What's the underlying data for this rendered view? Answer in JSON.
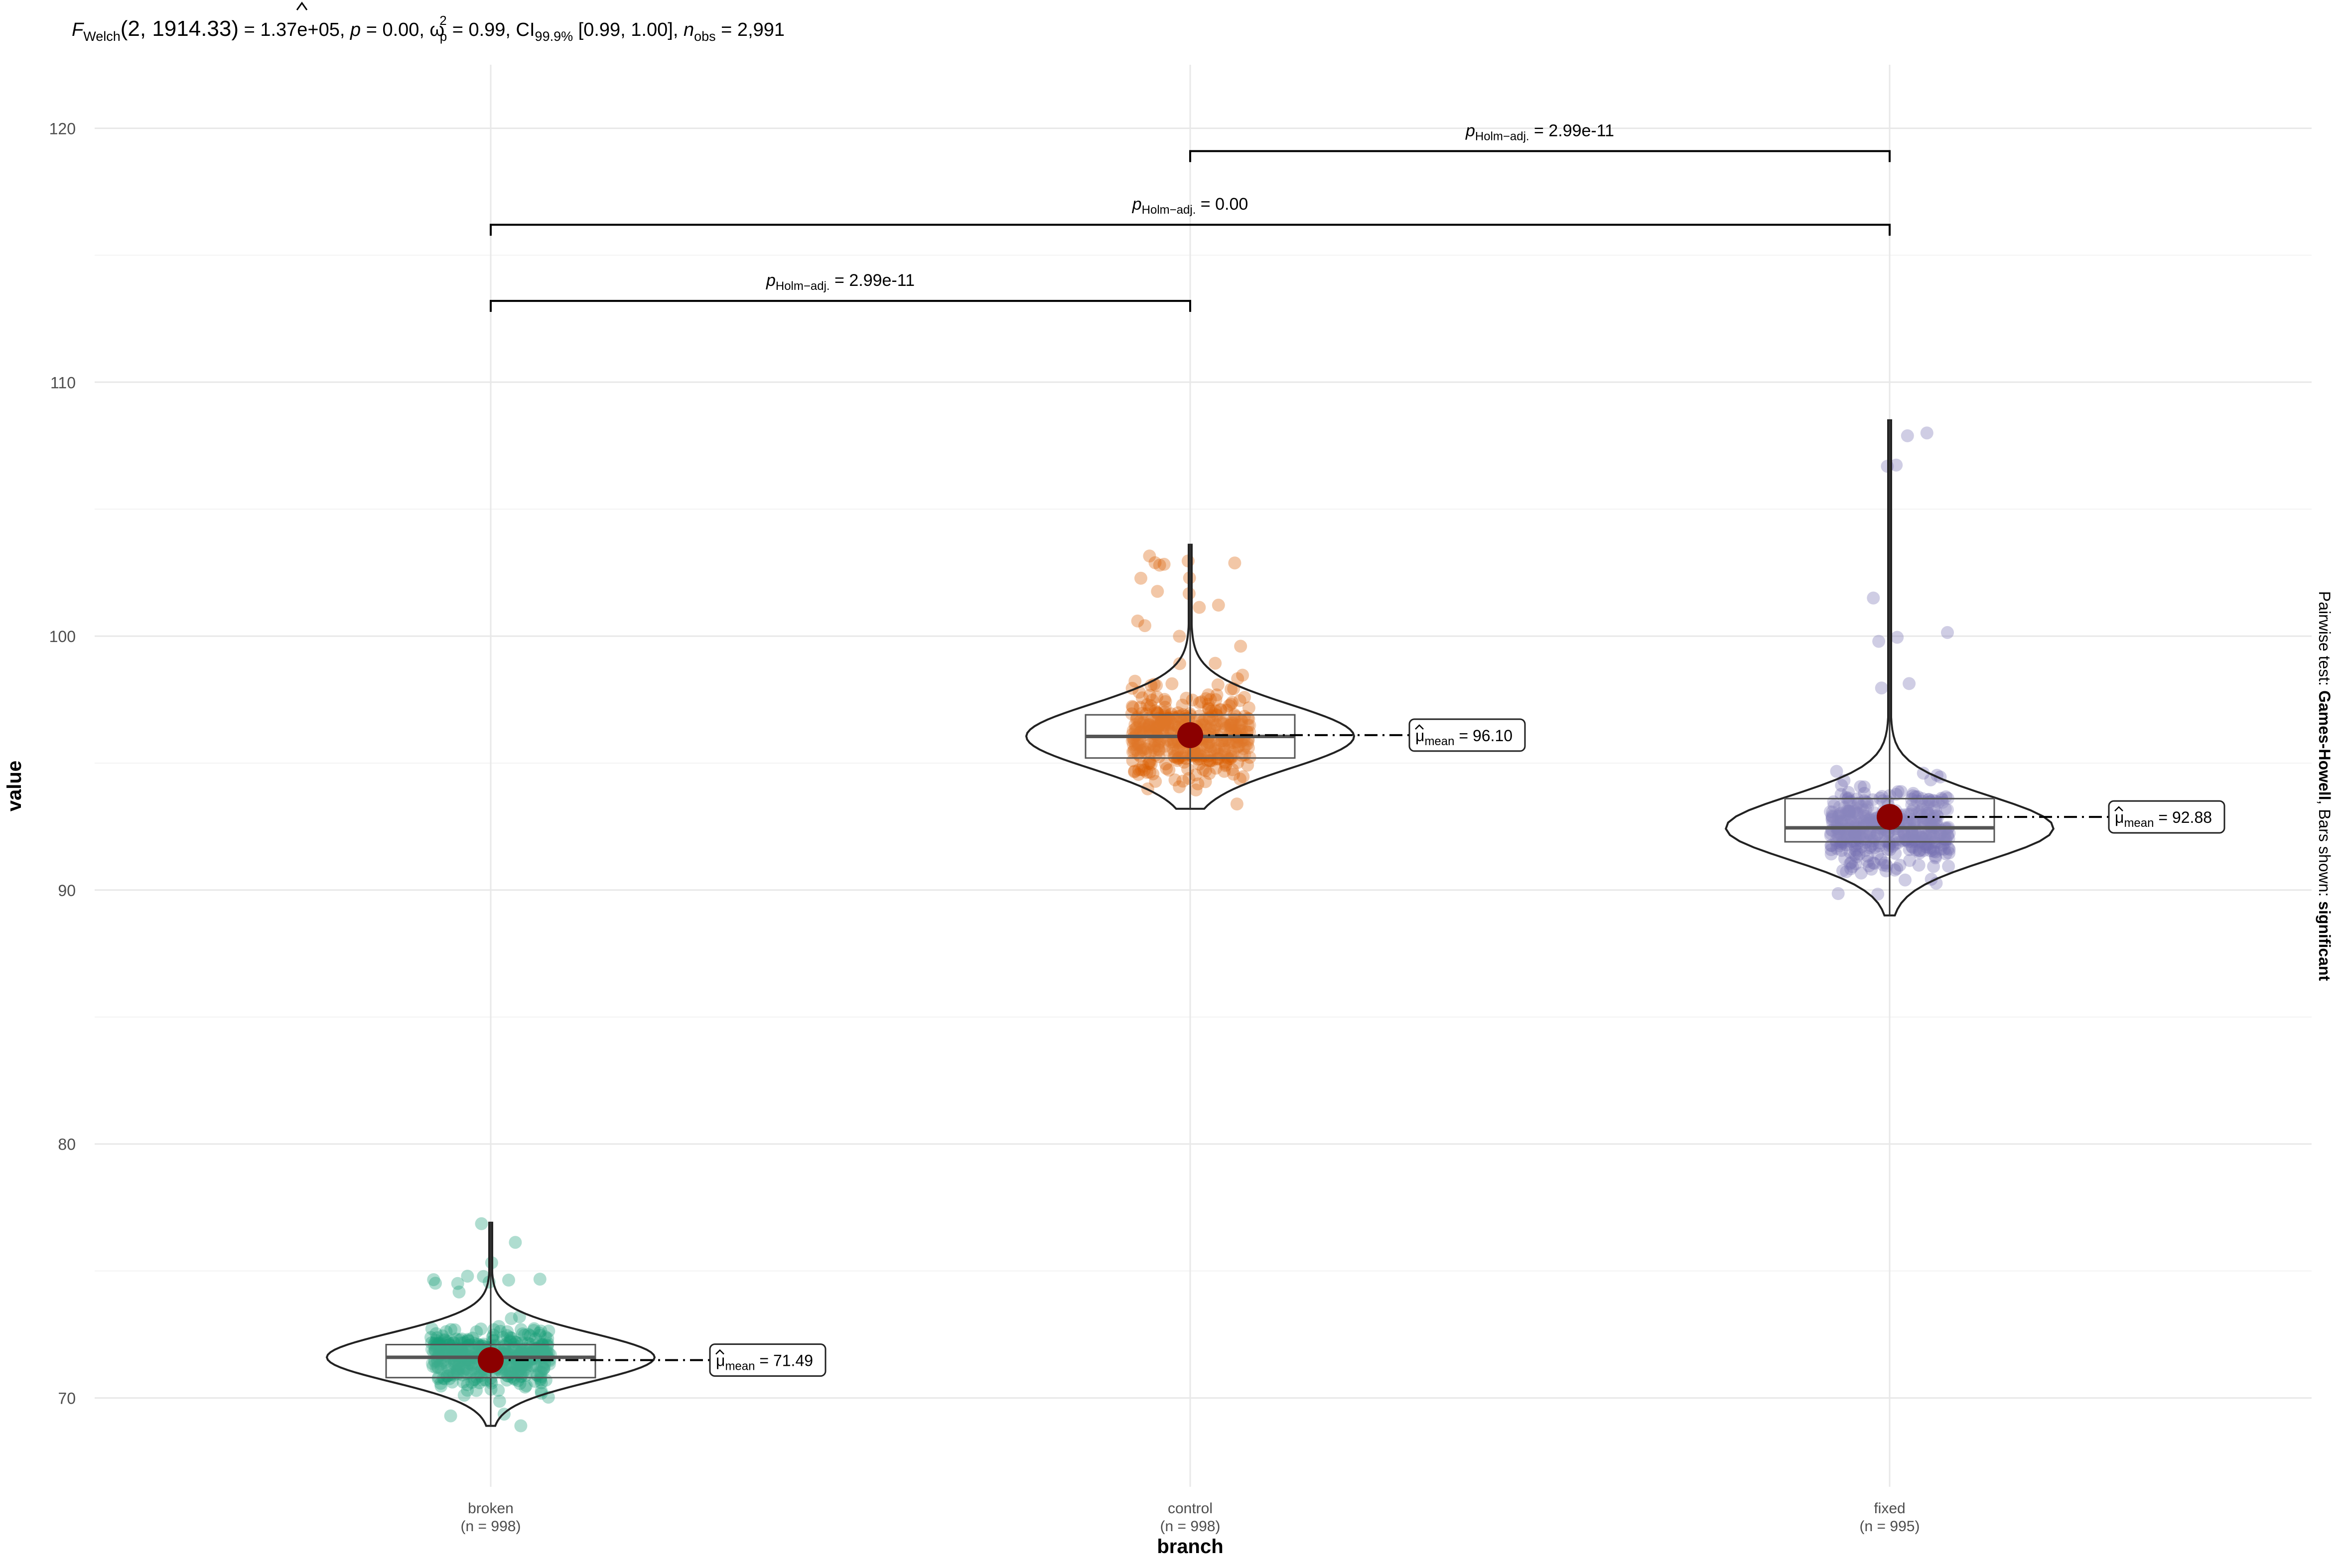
{
  "colors": {
    "broken": "#1B9E77",
    "control": "#D95F02",
    "fixed": "#7570B3",
    "mean_point": "#8B0000",
    "grid": "#EBEBEB",
    "text": "#4D4D4D"
  },
  "subtitle": {
    "stat_name": "F",
    "stat_sub": "Welch",
    "stat_args": "(2, 1914.33)",
    "stat_value": " = 1.37e+05, ",
    "p_sym": "p",
    "p_value": " = 0.00, ",
    "omega_sym": "ω",
    "omega_sup": "2",
    "omega_sub": "p",
    "omega_value": " = 0.99, CI",
    "ci_sub": "99.9%",
    "ci_value": " [0.99, 1.00], ",
    "n_sym": "n",
    "n_sub": "obs",
    "n_value": " = 2,991"
  },
  "caption": {
    "prefix": "Pairwise test: ",
    "test": "Games-Howell",
    "middle": ", Bars shown: ",
    "bars": "significant"
  },
  "chart_data": {
    "type": "violin-box-scatter",
    "xlabel": "branch",
    "ylabel": "value",
    "ylim": [
      66.5,
      122.5
    ],
    "y_ticks": [
      70,
      80,
      90,
      100,
      110,
      120
    ],
    "y_tick_labels": [
      "70",
      "80",
      "90",
      "100",
      "110",
      "120"
    ],
    "categories": [
      {
        "name": "broken",
        "label": "broken",
        "n_label": "(n = 998)",
        "mean": 71.49,
        "mean_label": "71.49",
        "q1": 70.8,
        "median": 71.6,
        "q3": 72.1,
        "min": 68.9,
        "max": 76.9
      },
      {
        "name": "control",
        "label": "control",
        "n_label": "(n = 998)",
        "mean": 96.1,
        "mean_label": "96.10",
        "q1": 95.2,
        "median": 96.05,
        "q3": 96.9,
        "min": 93.2,
        "max": 103.6
      },
      {
        "name": "fixed",
        "label": "fixed",
        "n_label": "(n = 995)",
        "mean": 92.88,
        "mean_label": "92.88",
        "q1": 91.9,
        "median": 92.45,
        "q3": 93.6,
        "min": 89.0,
        "max": 108.5
      }
    ],
    "mean_prefix": "μ",
    "mean_sub": "mean",
    "pairwise": [
      {
        "from": "broken",
        "to": "control",
        "y": 113.2,
        "label_sym": "p",
        "label_sub": "Holm−adj.",
        "label_value": " = 2.99e-11"
      },
      {
        "from": "broken",
        "to": "fixed",
        "y": 116.2,
        "label_sym": "p",
        "label_sub": "Holm−adj.",
        "label_value": " = 0.00"
      },
      {
        "from": "control",
        "to": "fixed",
        "y": 119.1,
        "label_sym": "p",
        "label_sub": "Holm−adj.",
        "label_value": " = 2.99e-11"
      }
    ]
  }
}
